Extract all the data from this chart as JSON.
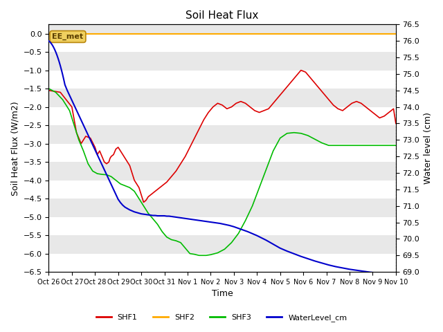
{
  "title": "Soil Heat Flux",
  "ylabel_left": "Soil Heat Flux (W/m2)",
  "ylabel_right": "Water level (cm)",
  "xlabel": "Time",
  "ylim_left": [
    -6.5,
    0.25
  ],
  "ylim_right": [
    69.0,
    76.5
  ],
  "background_color": "#e8e8e8",
  "annotation_label": "EE_met",
  "x_tick_labels": [
    "Oct 26",
    "Oct 27",
    "Oct 28",
    "Oct 29",
    "Oct 30",
    "Oct 31",
    "Nov 1",
    "Nov 2",
    "Nov 3",
    "Nov 4",
    "Nov 5",
    "Nov 6",
    "Nov 7",
    "Nov 8",
    "Nov 9",
    "Nov 10"
  ],
  "colors": {
    "SHF1": "#dd0000",
    "SHF2": "#ffaa00",
    "SHF3": "#00bb00",
    "WaterLevel_cm": "#0000cc"
  },
  "shf2_value": 0.0,
  "shf1_x": [
    0,
    0.5,
    1.0,
    1.2,
    1.4,
    1.6,
    1.8,
    2.0,
    2.1,
    2.2,
    2.3,
    2.4,
    2.5,
    2.6,
    2.65,
    2.7,
    2.8,
    2.9,
    3.0,
    3.1,
    3.2,
    3.3,
    3.4,
    3.5,
    3.6,
    3.7,
    3.8,
    3.9,
    4.0,
    4.1,
    4.2,
    4.3,
    4.5,
    4.7,
    4.9,
    5.1,
    5.3,
    5.5,
    5.7,
    5.9,
    6.1,
    6.3,
    6.5,
    6.7,
    6.9,
    7.1,
    7.3,
    7.5,
    7.7,
    7.9,
    8.1,
    8.3,
    8.5,
    8.7,
    8.9,
    9.1,
    9.3,
    9.5,
    9.7,
    9.9,
    10.1,
    10.3,
    10.5,
    10.7,
    10.9,
    11.1,
    11.3,
    11.5,
    11.7,
    11.9,
    12.1,
    12.3,
    12.5,
    12.7,
    12.9,
    13.1,
    13.3,
    13.5,
    13.7,
    13.9,
    14.1,
    14.3,
    14.5,
    14.7,
    14.9,
    15.0
  ],
  "shf1_y": [
    -1.55,
    -1.6,
    -2.0,
    -2.7,
    -3.0,
    -2.8,
    -2.85,
    -3.1,
    -3.3,
    -3.2,
    -3.35,
    -3.5,
    -3.55,
    -3.5,
    -3.4,
    -3.35,
    -3.3,
    -3.15,
    -3.1,
    -3.2,
    -3.3,
    -3.4,
    -3.5,
    -3.6,
    -3.8,
    -4.0,
    -4.1,
    -4.2,
    -4.4,
    -4.6,
    -4.55,
    -4.45,
    -4.35,
    -4.25,
    -4.15,
    -4.05,
    -3.9,
    -3.75,
    -3.55,
    -3.35,
    -3.1,
    -2.85,
    -2.6,
    -2.35,
    -2.15,
    -2.0,
    -1.9,
    -1.95,
    -2.05,
    -2.0,
    -1.9,
    -1.85,
    -1.9,
    -2.0,
    -2.1,
    -2.15,
    -2.1,
    -2.05,
    -1.9,
    -1.75,
    -1.6,
    -1.45,
    -1.3,
    -1.15,
    -1.0,
    -1.05,
    -1.2,
    -1.35,
    -1.5,
    -1.65,
    -1.8,
    -1.95,
    -2.05,
    -2.1,
    -2.0,
    -1.9,
    -1.85,
    -1.9,
    -2.0,
    -2.1,
    -2.2,
    -2.3,
    -2.25,
    -2.15,
    -2.05,
    -2.45
  ],
  "shf3_x": [
    0,
    0.3,
    0.6,
    0.9,
    1.1,
    1.3,
    1.5,
    1.7,
    1.9,
    2.1,
    2.3,
    2.5,
    2.7,
    2.9,
    3.1,
    3.3,
    3.5,
    3.7,
    3.9,
    4.1,
    4.3,
    4.5,
    4.7,
    4.9,
    5.1,
    5.3,
    5.5,
    5.7,
    5.9,
    6.1,
    6.3,
    6.5,
    6.8,
    7.0,
    7.3,
    7.6,
    7.9,
    8.2,
    8.5,
    8.8,
    9.1,
    9.4,
    9.7,
    10.0,
    10.3,
    10.6,
    10.9,
    11.2,
    11.5,
    11.8,
    12.1,
    12.4,
    12.7,
    13.0,
    13.3,
    13.6,
    13.9,
    14.2,
    14.5,
    14.8,
    15.0
  ],
  "shf3_y": [
    -1.5,
    -1.6,
    -1.8,
    -2.1,
    -2.5,
    -2.9,
    -3.2,
    -3.55,
    -3.75,
    -3.82,
    -3.84,
    -3.85,
    -3.9,
    -4.0,
    -4.1,
    -4.15,
    -4.2,
    -4.3,
    -4.5,
    -4.7,
    -4.9,
    -5.05,
    -5.2,
    -5.4,
    -5.55,
    -5.62,
    -5.65,
    -5.7,
    -5.85,
    -6.0,
    -6.02,
    -6.05,
    -6.05,
    -6.03,
    -5.98,
    -5.88,
    -5.7,
    -5.45,
    -5.1,
    -4.7,
    -4.2,
    -3.7,
    -3.2,
    -2.85,
    -2.72,
    -2.7,
    -2.72,
    -2.78,
    -2.88,
    -2.98,
    -3.05,
    -3.05,
    -3.05,
    -3.05,
    -3.05,
    -3.05,
    -3.05,
    -3.05,
    -3.05,
    -3.05,
    -3.05
  ],
  "wl_x": [
    0,
    0.05,
    0.1,
    0.15,
    0.2,
    0.25,
    0.3,
    0.35,
    0.4,
    0.45,
    0.5,
    0.55,
    0.6,
    0.65,
    0.7,
    0.8,
    0.9,
    1.0,
    1.1,
    1.2,
    1.3,
    1.4,
    1.5,
    1.6,
    1.7,
    1.8,
    1.9,
    2.0,
    2.1,
    2.2,
    2.3,
    2.4,
    2.5,
    2.6,
    2.7,
    2.8,
    2.9,
    3.0,
    3.1,
    3.2,
    3.3,
    3.4,
    3.5,
    3.6,
    3.7,
    3.8,
    3.9,
    4.0,
    4.1,
    4.2,
    4.3,
    4.4,
    4.5,
    4.6,
    4.7,
    4.8,
    4.9,
    5.0,
    5.1,
    5.2,
    5.3,
    5.4,
    5.5,
    5.6,
    5.7,
    5.8,
    5.9,
    6.0,
    6.1,
    6.2,
    6.3,
    6.4,
    6.5,
    6.6,
    6.7,
    6.8,
    6.9,
    7.0,
    7.2,
    7.4,
    7.6,
    7.8,
    8.0,
    8.2,
    8.4,
    8.6,
    8.8,
    9.0,
    9.2,
    9.4,
    9.6,
    9.8,
    10.0,
    10.3,
    10.6,
    10.9,
    11.2,
    11.5,
    11.8,
    12.1,
    12.4,
    12.7,
    13.0,
    13.3,
    13.6,
    13.9,
    14.2,
    14.5,
    14.8,
    15.0
  ],
  "wl_y": [
    76.0,
    75.97,
    75.93,
    75.88,
    75.82,
    75.75,
    75.67,
    75.58,
    75.48,
    75.37,
    75.25,
    75.12,
    74.98,
    74.83,
    74.67,
    74.5,
    74.35,
    74.2,
    74.05,
    73.9,
    73.75,
    73.6,
    73.45,
    73.3,
    73.15,
    73.0,
    72.85,
    72.7,
    72.55,
    72.4,
    72.25,
    72.1,
    71.95,
    71.8,
    71.65,
    71.5,
    71.35,
    71.2,
    71.1,
    71.02,
    70.96,
    70.92,
    70.88,
    70.85,
    70.82,
    70.8,
    70.78,
    70.76,
    70.75,
    70.74,
    70.73,
    70.72,
    70.71,
    70.71,
    70.7,
    70.7,
    70.7,
    70.7,
    70.69,
    70.69,
    70.68,
    70.67,
    70.66,
    70.65,
    70.64,
    70.63,
    70.62,
    70.61,
    70.6,
    70.59,
    70.58,
    70.57,
    70.56,
    70.55,
    70.54,
    70.53,
    70.52,
    70.51,
    70.49,
    70.47,
    70.44,
    70.41,
    70.37,
    70.32,
    70.27,
    70.22,
    70.16,
    70.1,
    70.03,
    69.96,
    69.88,
    69.8,
    69.72,
    69.63,
    69.55,
    69.47,
    69.4,
    69.33,
    69.27,
    69.21,
    69.16,
    69.12,
    69.08,
    69.05,
    69.02,
    68.99,
    68.97,
    68.95,
    68.93,
    68.92
  ]
}
